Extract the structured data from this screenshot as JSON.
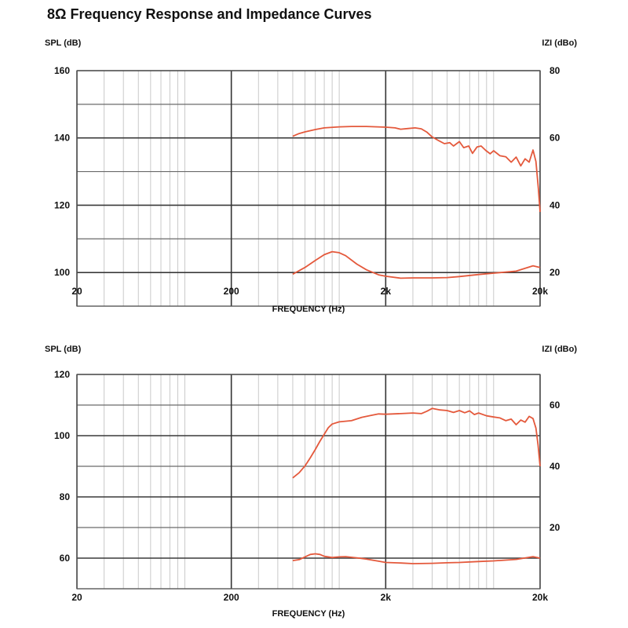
{
  "title": "8Ω Frequency Response and Impedance Curves",
  "chart_data": [
    {
      "type": "line",
      "ylabel_left": "SPL (dB)",
      "ylabel_right": "IZI (dBo)",
      "xlabel": "FREQUENCY (Hz)",
      "xscale": "log",
      "xlim": [
        20,
        20000
      ],
      "x_ticks": [
        {
          "value": 20,
          "label": "20"
        },
        {
          "value": 200,
          "label": "200"
        },
        {
          "value": 2000,
          "label": "2k"
        },
        {
          "value": 20000,
          "label": "20k"
        }
      ],
      "ylim_left": [
        90,
        160
      ],
      "y_ticks_left": [
        {
          "value": 160,
          "label": "160"
        },
        {
          "value": 140,
          "label": "140"
        },
        {
          "value": 120,
          "label": "120"
        },
        {
          "value": 100,
          "label": "100"
        }
      ],
      "ylim_right": [
        10,
        80
      ],
      "y_ticks_right": [
        {
          "value": 80,
          "label": "80"
        },
        {
          "value": 60,
          "label": "60"
        },
        {
          "value": 40,
          "label": "40"
        },
        {
          "value": 20,
          "label": "20"
        }
      ],
      "grid": true,
      "line_color": "#e4593c",
      "series": [
        {
          "axis": "left",
          "points": [
            [
              500,
              140.5
            ],
            [
              550,
              141.3
            ],
            [
              600,
              141.8
            ],
            [
              700,
              142.5
            ],
            [
              800,
              143
            ],
            [
              1000,
              143.3
            ],
            [
              1200,
              143.4
            ],
            [
              1500,
              143.4
            ],
            [
              2000,
              143.2
            ],
            [
              2300,
              143
            ],
            [
              2500,
              142.6
            ],
            [
              2800,
              142.8
            ],
            [
              3100,
              143
            ],
            [
              3400,
              142.7
            ],
            [
              3700,
              141.7
            ],
            [
              4000,
              140.3
            ],
            [
              4400,
              139.2
            ],
            [
              4800,
              138.3
            ],
            [
              5200,
              138.6
            ],
            [
              5500,
              137.6
            ],
            [
              6000,
              138.9
            ],
            [
              6400,
              137.1
            ],
            [
              6900,
              137.6
            ],
            [
              7300,
              135.4
            ],
            [
              7800,
              137.3
            ],
            [
              8300,
              137.6
            ],
            [
              8900,
              136.3
            ],
            [
              9500,
              135.3
            ],
            [
              10000,
              136.2
            ],
            [
              11000,
              134.7
            ],
            [
              12000,
              134.4
            ],
            [
              13000,
              132.8
            ],
            [
              14000,
              134.3
            ],
            [
              15000,
              131.7
            ],
            [
              16000,
              133.8
            ],
            [
              17000,
              132.8
            ],
            [
              18000,
              136.4
            ],
            [
              18800,
              133
            ],
            [
              19500,
              125
            ],
            [
              20000,
              118
            ]
          ]
        },
        {
          "axis": "right",
          "points": [
            [
              500,
              19.5
            ],
            [
              600,
              21.5
            ],
            [
              700,
              23.6
            ],
            [
              800,
              25.3
            ],
            [
              900,
              26.2
            ],
            [
              1000,
              25.9
            ],
            [
              1100,
              25
            ],
            [
              1300,
              22.5
            ],
            [
              1500,
              20.8
            ],
            [
              1800,
              19.3
            ],
            [
              2000,
              18.9
            ],
            [
              2500,
              18.3
            ],
            [
              3000,
              18.4
            ],
            [
              4000,
              18.4
            ],
            [
              5000,
              18.5
            ],
            [
              6000,
              18.8
            ],
            [
              8000,
              19.4
            ],
            [
              10000,
              19.8
            ],
            [
              14000,
              20.4
            ],
            [
              18000,
              22
            ],
            [
              20000,
              21.5
            ]
          ]
        }
      ]
    },
    {
      "type": "line",
      "ylabel_left": "SPL (dB)",
      "ylabel_right": "IZI (dBo)",
      "xlabel": "FREQUENCY (Hz)",
      "xscale": "log",
      "xlim": [
        20,
        20000
      ],
      "x_ticks": [
        {
          "value": 20,
          "label": "20"
        },
        {
          "value": 200,
          "label": "200"
        },
        {
          "value": 2000,
          "label": "2k"
        },
        {
          "value": 20000,
          "label": "20k"
        }
      ],
      "ylim_left": [
        50,
        120
      ],
      "y_ticks_left": [
        {
          "value": 120,
          "label": "120"
        },
        {
          "value": 100,
          "label": "100"
        },
        {
          "value": 80,
          "label": "80"
        },
        {
          "value": 60,
          "label": "60"
        }
      ],
      "ylim_right": [
        0,
        70
      ],
      "y_ticks_right": [
        {
          "value": 60,
          "label": "60"
        },
        {
          "value": 40,
          "label": "40"
        },
        {
          "value": 20,
          "label": "20"
        }
      ],
      "grid": true,
      "line_color": "#e4593c",
      "series": [
        {
          "axis": "left",
          "points": [
            [
              500,
              86.2
            ],
            [
              550,
              87.9
            ],
            [
              600,
              90.1
            ],
            [
              650,
              92.8
            ],
            [
              700,
              95.5
            ],
            [
              750,
              98.2
            ],
            [
              800,
              100.5
            ],
            [
              850,
              102.6
            ],
            [
              900,
              103.8
            ],
            [
              1000,
              104.5
            ],
            [
              1200,
              104.9
            ],
            [
              1400,
              106
            ],
            [
              1600,
              106.6
            ],
            [
              1800,
              107.1
            ],
            [
              2000,
              107
            ],
            [
              2500,
              107.2
            ],
            [
              3000,
              107.4
            ],
            [
              3400,
              107.2
            ],
            [
              3700,
              108
            ],
            [
              4000,
              108.9
            ],
            [
              4500,
              108.4
            ],
            [
              5000,
              108.2
            ],
            [
              5500,
              107.6
            ],
            [
              6000,
              108.2
            ],
            [
              6500,
              107.5
            ],
            [
              7000,
              108.1
            ],
            [
              7500,
              106.9
            ],
            [
              8000,
              107.4
            ],
            [
              9000,
              106.5
            ],
            [
              10000,
              106.1
            ],
            [
              11000,
              105.8
            ],
            [
              12000,
              104.9
            ],
            [
              13000,
              105.4
            ],
            [
              14000,
              103.6
            ],
            [
              15000,
              105.1
            ],
            [
              16000,
              104.4
            ],
            [
              17000,
              106.3
            ],
            [
              18000,
              105.6
            ],
            [
              18800,
              102.5
            ],
            [
              19400,
              97
            ],
            [
              20000,
              90
            ]
          ]
        },
        {
          "axis": "right",
          "points": [
            [
              500,
              9.2
            ],
            [
              550,
              9.5
            ],
            [
              600,
              10.4
            ],
            [
              650,
              11.2
            ],
            [
              700,
              11.4
            ],
            [
              750,
              11.2
            ],
            [
              800,
              10.6
            ],
            [
              900,
              10.2
            ],
            [
              1000,
              10.4
            ],
            [
              1100,
              10.5
            ],
            [
              1300,
              10.1
            ],
            [
              1500,
              9.7
            ],
            [
              1800,
              9
            ],
            [
              2000,
              8.6
            ],
            [
              2500,
              8.4
            ],
            [
              3000,
              8.2
            ],
            [
              4000,
              8.3
            ],
            [
              5000,
              8.5
            ],
            [
              6000,
              8.6
            ],
            [
              8000,
              8.9
            ],
            [
              10000,
              9.1
            ],
            [
              14000,
              9.6
            ],
            [
              18000,
              10.5
            ],
            [
              20000,
              10
            ]
          ]
        }
      ]
    }
  ]
}
